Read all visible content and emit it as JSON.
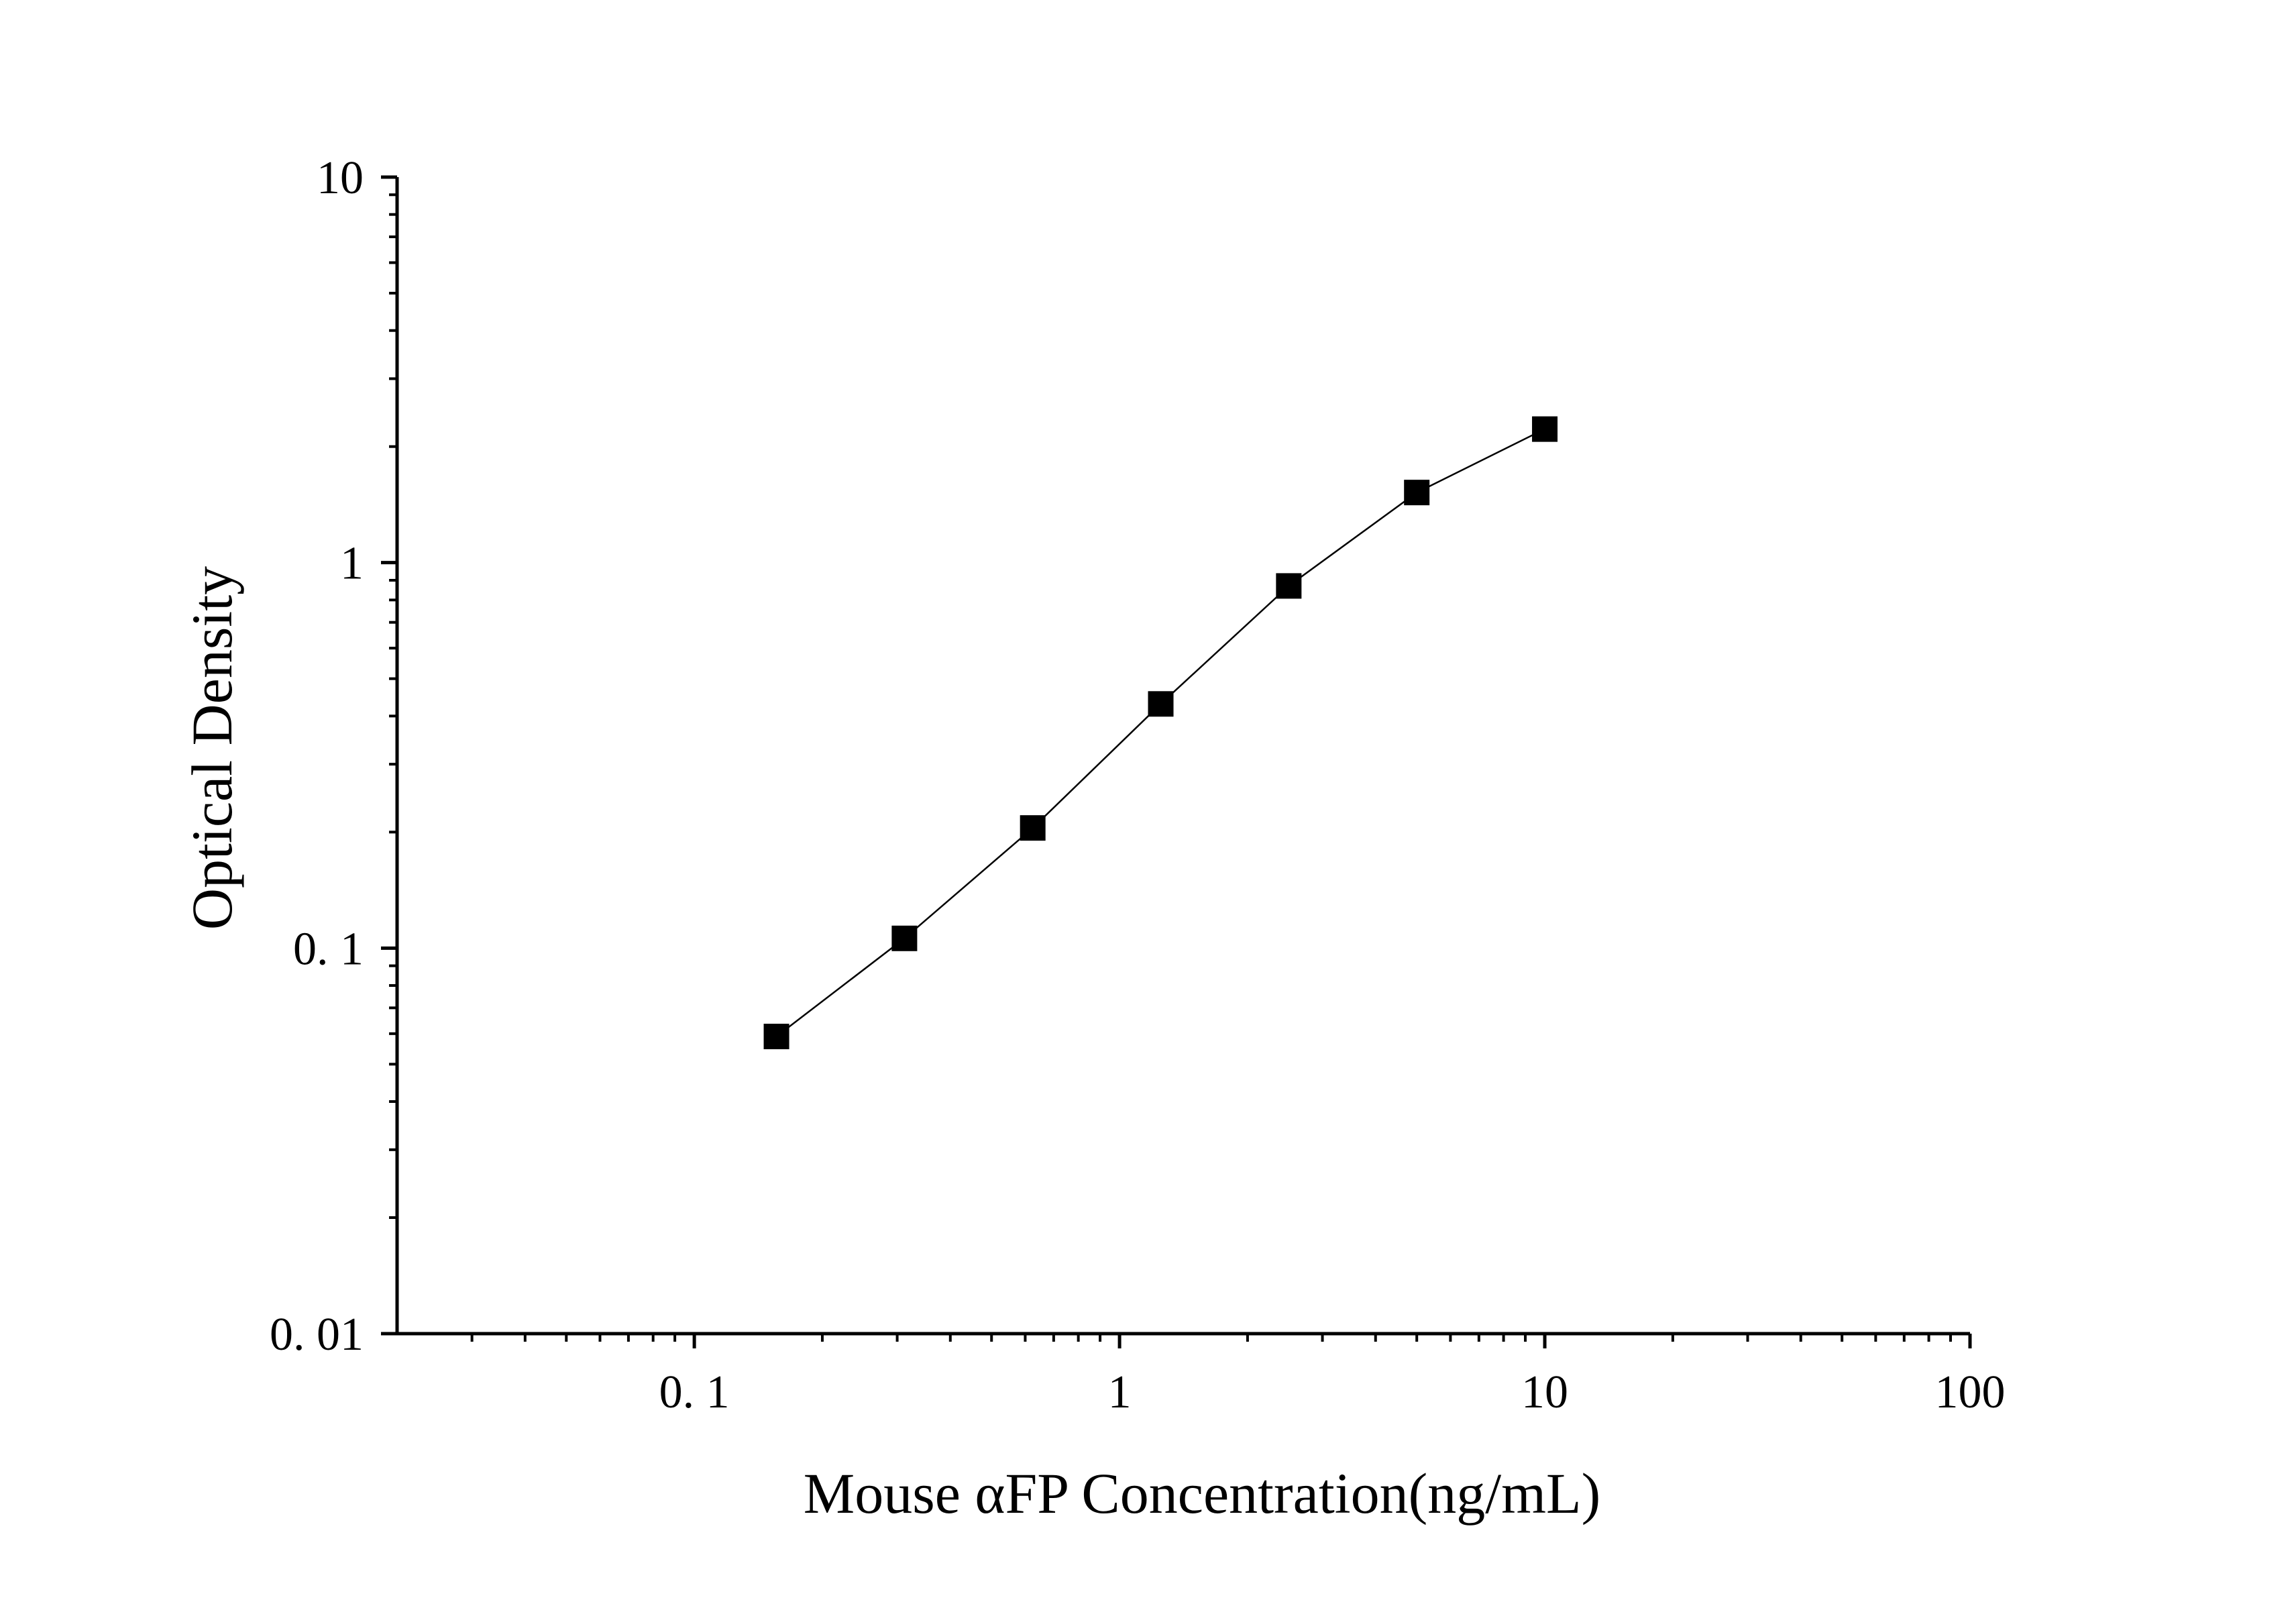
{
  "chart_data": {
    "type": "line",
    "xlabel": "Mouse αFP Concentration(ng/mL)",
    "ylabel": "Optical Density",
    "x_scale": "log",
    "y_scale": "log",
    "xlim": [
      0.02,
      100
    ],
    "ylim": [
      0.01,
      10
    ],
    "x_ticks": [
      {
        "value": 0.1,
        "label": "0. 1"
      },
      {
        "value": 1,
        "label": "1"
      },
      {
        "value": 10,
        "label": "10"
      },
      {
        "value": 100,
        "label": "100"
      }
    ],
    "y_ticks": [
      {
        "value": 0.01,
        "label": "0. 01"
      },
      {
        "value": 0.1,
        "label": "0. 1"
      },
      {
        "value": 1,
        "label": "1"
      },
      {
        "value": 10,
        "label": "10"
      }
    ],
    "grid": false,
    "legend": "none",
    "marker": "square",
    "color": "#000000",
    "series": [
      {
        "x": [
          0.156,
          0.312,
          0.625,
          1.25,
          2.5,
          5,
          10
        ],
        "y": [
          0.059,
          0.106,
          0.205,
          0.43,
          0.87,
          1.52,
          2.22
        ]
      }
    ]
  }
}
